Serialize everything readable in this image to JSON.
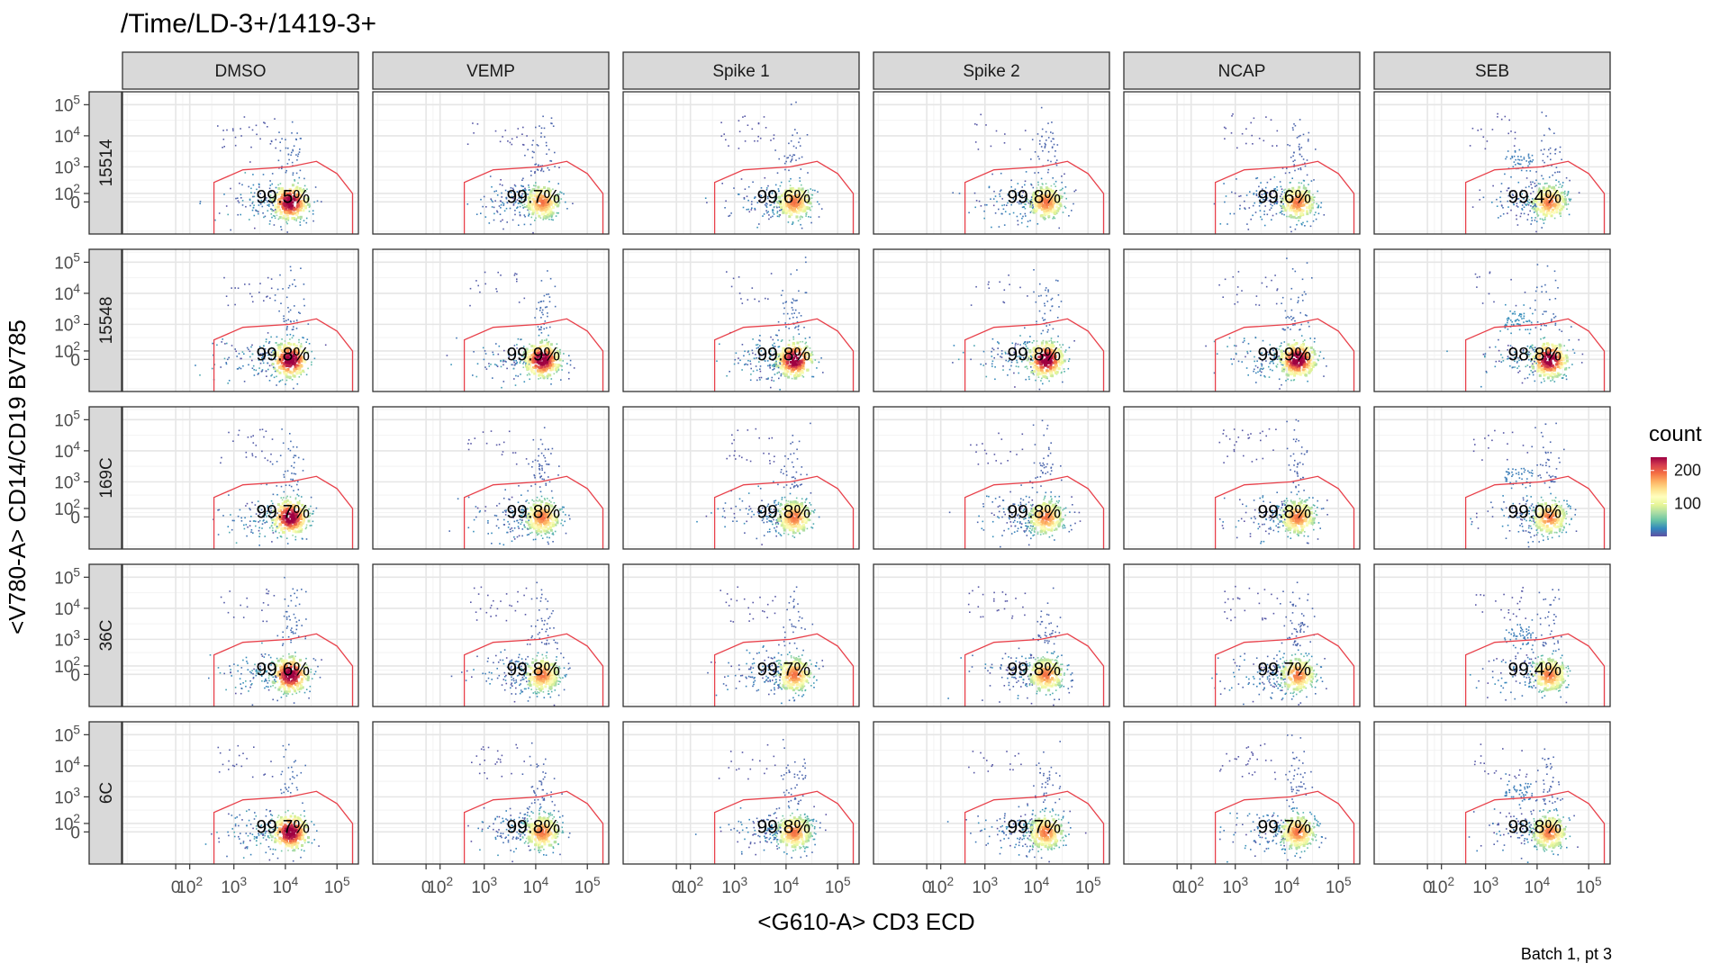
{
  "chart_data": {
    "type": "scatter",
    "subtype": "faceted 2D density (flow cytometry hexbin) with polygon gate",
    "title": "/Time/LD-3+/1419-3+",
    "xlabel": "<G610-A> CD3 ECD",
    "ylabel": "<V780-A> CD14/CD19 BV785",
    "caption": "Batch 1, pt 3",
    "columns": [
      "DMSO",
      "VEMP",
      "Spike 1",
      "Spike 2",
      "NCAP",
      "SEB"
    ],
    "rows": [
      "15514",
      "15548",
      "169C",
      "36C",
      "6C"
    ],
    "x_ticks": [
      {
        "label": "0",
        "value": 0
      },
      {
        "label": "10^2",
        "value": 100
      },
      {
        "label": "10^3",
        "value": 1000
      },
      {
        "label": "10^4",
        "value": 10000
      },
      {
        "label": "10^5",
        "value": 100000
      }
    ],
    "y_ticks": [
      {
        "label": "0",
        "value": 0
      },
      {
        "label": "10^2",
        "value": 100
      },
      {
        "label": "10^3",
        "value": 1000
      },
      {
        "label": "10^4",
        "value": 10000
      },
      {
        "label": "10^5",
        "value": 100000
      }
    ],
    "scale": "biexponential (flowJo-style), approx range -800 to 260000",
    "gate_percentages": [
      [
        "99.5%",
        "99.7%",
        "99.6%",
        "99.8%",
        "99.6%",
        "99.4%"
      ],
      [
        "99.8%",
        "99.9%",
        "99.8%",
        "99.8%",
        "99.9%",
        "98.8%"
      ],
      [
        "99.7%",
        "99.8%",
        "99.8%",
        "99.8%",
        "99.8%",
        "99.0%"
      ],
      [
        "99.6%",
        "99.8%",
        "99.7%",
        "99.8%",
        "99.7%",
        "99.4%"
      ],
      [
        "99.7%",
        "99.8%",
        "99.8%",
        "99.7%",
        "99.7%",
        "98.8%"
      ]
    ],
    "gate_color": "#e8404a",
    "legend": {
      "title": "count",
      "placement": "right",
      "ticks": [
        {
          "label": "200",
          "value": 200
        },
        {
          "label": "100",
          "value": 100
        }
      ],
      "min": 1,
      "max": 240,
      "palette": [
        "#5e4fa2",
        "#3288bd",
        "#66c2a5",
        "#abdda4",
        "#e6f598",
        "#ffffbf",
        "#fee08b",
        "#fdae61",
        "#f46d43",
        "#d53e4f",
        "#9e0142"
      ]
    },
    "grid": true,
    "strip_fill": "#d9d9d9"
  }
}
